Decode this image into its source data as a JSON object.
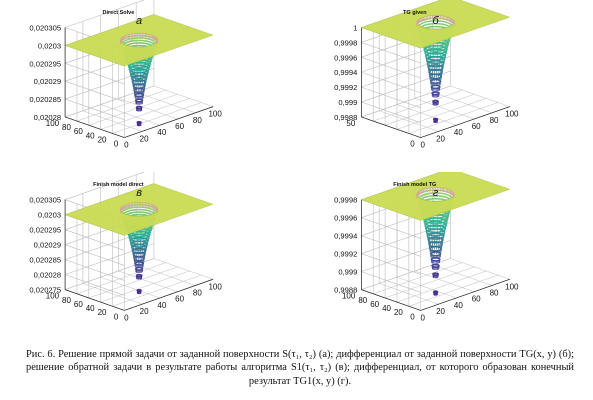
{
  "chart_data": [
    {
      "type": "surface3d",
      "panel_letter": "а",
      "title": "Direct Solve",
      "z_ticks": [
        "0,020305",
        "0,0203",
        "0,020295",
        "0,02029",
        "0,020285",
        "0,02028"
      ],
      "x_ticks": [
        "0",
        "20",
        "40",
        "60",
        "80",
        "100"
      ],
      "y_ticks": [
        "0",
        "20",
        "40",
        "60",
        "80",
        "100"
      ],
      "xlim": [
        0,
        100
      ],
      "ylim": [
        0,
        100
      ],
      "zlim": [
        0.02028,
        0.020305
      ],
      "surface": {
        "plateau_z": 0.0203,
        "well_min_z": 0.020277,
        "well_center": [
          50,
          50
        ]
      },
      "colors": {
        "plateau": "#c9dc55",
        "well_top": "#2fb39a",
        "well_bottom": "#4b2c8f"
      }
    },
    {
      "type": "surface3d",
      "panel_letter": "б",
      "title": "TG given",
      "z_ticks": [
        "1",
        "0,9998",
        "0,9996",
        "0,9994",
        "0,9992",
        "0,999",
        "0,9988"
      ],
      "x_ticks": [
        "0",
        "20",
        "40",
        "60",
        "80",
        "100"
      ],
      "y_ticks": [
        "0",
        "50"
      ],
      "xlim": [
        0,
        100
      ],
      "ylim": [
        0,
        100
      ],
      "zlim": [
        0.9988,
        1
      ],
      "surface": {
        "plateau_z": 1.0,
        "well_min_z": 0.9987,
        "well_center": [
          50,
          50
        ]
      },
      "colors": {
        "plateau": "#c9dc55",
        "well_top": "#2fb39a",
        "well_bottom": "#4b2c8f"
      }
    },
    {
      "type": "surface3d",
      "panel_letter": "в",
      "title": "Finish model direct",
      "z_ticks": [
        "0,020305",
        "0,0203",
        "0,020295",
        "0,02029",
        "0,020285",
        "0,02028",
        "0,020275"
      ],
      "x_ticks": [
        "0",
        "20",
        "40",
        "60",
        "80",
        "100"
      ],
      "y_ticks": [
        "0",
        "20",
        "40",
        "60",
        "80",
        "100"
      ],
      "xlim": [
        0,
        100
      ],
      "ylim": [
        0,
        100
      ],
      "zlim": [
        0.020275,
        0.020305
      ],
      "surface": {
        "plateau_z": 0.0203,
        "well_min_z": 0.020273,
        "well_center": [
          50,
          50
        ]
      },
      "colors": {
        "plateau": "#c9dc55",
        "well_top": "#2fb39a",
        "well_bottom": "#4b2c8f"
      }
    },
    {
      "type": "surface3d",
      "panel_letter": "г",
      "title": "Finish model TG",
      "z_ticks": [
        "0,9998",
        "0,9996",
        "0,9994",
        "0,9992",
        "0,999",
        "0,9988"
      ],
      "x_ticks": [
        "0",
        "20",
        "40",
        "60",
        "80",
        "100"
      ],
      "y_ticks": [
        "0",
        "20",
        "40",
        "60",
        "80",
        "100"
      ],
      "xlim": [
        0,
        100
      ],
      "ylim": [
        0,
        100
      ],
      "zlim": [
        0.9988,
        1
      ],
      "surface": {
        "plateau_z": 1.0,
        "well_min_z": 0.9987,
        "well_center": [
          50,
          50
        ]
      },
      "colors": {
        "plateau": "#c9dc55",
        "well_top": "#2fb39a",
        "well_bottom": "#4b2c8f"
      }
    }
  ],
  "caption": {
    "line1": "Рис. 6. Решение прямой задачи от заданной поверхности S(τ₁, τ₂) (а); дифференциал от заданной поверхности TG(x, y) (б);",
    "line2": "решение обратной задачи в результате работы алгоритма S1(τ₁, τ₂) (в); дифференциал, от которого образован конечный",
    "line3": "результат TG1(x, y) (г)."
  },
  "colors": {
    "axis": "#222222",
    "grid": "#bdbdbd",
    "text": "#111111"
  }
}
